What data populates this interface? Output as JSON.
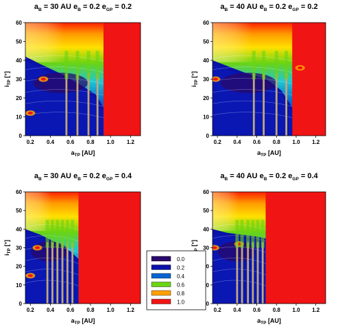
{
  "chart_data": [
    {
      "type": "heatmap",
      "panel": "top-left",
      "title": {
        "a_value": "30 AU",
        "e_value": "0.2",
        "egp_value": "0.2"
      },
      "xlabel": {
        "main": "a",
        "sub": "TP",
        "unit": "[AU]"
      },
      "ylabel": {
        "main": "i",
        "sub": "TP",
        "unit": "[°]"
      },
      "xlim": [
        0.15,
        1.3
      ],
      "ylim": [
        0,
        60
      ],
      "xticks": [
        "0.2",
        "0.4",
        "0.6",
        "0.8",
        "1.0",
        "1.2"
      ],
      "yticks": [
        "0",
        "10",
        "20",
        "30",
        "40",
        "50",
        "60"
      ],
      "stable_edge": [
        [
          0.15,
          42
        ],
        [
          0.3,
          38
        ],
        [
          0.5,
          33
        ],
        [
          0.7,
          27
        ],
        [
          0.85,
          22
        ],
        [
          0.93,
          15
        ]
      ],
      "unstable_limit": 0.93,
      "resonance_lines": [
        0.56,
        0.67,
        0.78,
        0.87
      ],
      "features": [
        {
          "x": 0.33,
          "y": 30
        },
        {
          "x": 0.2,
          "y": 12
        }
      ]
    },
    {
      "type": "heatmap",
      "panel": "top-right",
      "title": {
        "a_value": "40 AU",
        "e_value": "0.2",
        "egp_value": "0.2"
      },
      "xlabel": {
        "main": "a",
        "sub": "TP",
        "unit": "[AU]"
      },
      "ylabel": {
        "main": "i",
        "sub": "TP",
        "unit": "[°]"
      },
      "xlim": [
        0.15,
        1.3
      ],
      "ylim": [
        0,
        60
      ],
      "xticks": [
        "0.2",
        "0.4",
        "0.6",
        "0.8",
        "1.0",
        "1.2"
      ],
      "yticks": [
        "0",
        "10",
        "20",
        "30",
        "40",
        "50",
        "60"
      ],
      "stable_edge": [
        [
          0.15,
          40
        ],
        [
          0.3,
          37
        ],
        [
          0.5,
          33
        ],
        [
          0.7,
          30
        ],
        [
          0.85,
          24
        ],
        [
          0.96,
          15
        ]
      ],
      "unstable_limit": 0.96,
      "resonance_lines": [
        0.57,
        0.67,
        0.8,
        0.9
      ],
      "features": [
        {
          "x": 0.18,
          "y": 30
        },
        {
          "x": 1.04,
          "y": 36
        }
      ]
    },
    {
      "type": "heatmap",
      "panel": "bottom-left",
      "title": {
        "a_value": "30 AU",
        "e_value": "0.2",
        "egp_value": "0.4"
      },
      "xlabel": {
        "main": "a",
        "sub": "TP",
        "unit": "[AU]"
      },
      "ylabel": {
        "main": "i",
        "sub": "TP",
        "unit": "[°]"
      },
      "xlim": [
        0.15,
        1.3
      ],
      "ylim": [
        0,
        60
      ],
      "xticks": [
        "0.2",
        "0.4",
        "0.6",
        "0.8",
        "1.0",
        "1.2"
      ],
      "yticks": [
        "0",
        "10",
        "20",
        "30",
        "40",
        "50",
        "60"
      ],
      "stable_edge": [
        [
          0.15,
          40
        ],
        [
          0.3,
          37
        ],
        [
          0.45,
          33
        ],
        [
          0.6,
          28
        ],
        [
          0.68,
          24
        ]
      ],
      "unstable_limit": 0.68,
      "resonance_lines": [
        0.37,
        0.42,
        0.47,
        0.52,
        0.57,
        0.62
      ],
      "features": [
        {
          "x": 0.27,
          "y": 30
        },
        {
          "x": 0.2,
          "y": 15
        }
      ]
    },
    {
      "type": "heatmap",
      "panel": "bottom-right",
      "title": {
        "a_value": "40 AU",
        "e_value": "0.2",
        "egp_value": "0.4"
      },
      "xlabel": {
        "main": "a",
        "sub": "TP",
        "unit": "[AU]"
      },
      "ylabel": {
        "main": "i",
        "sub": "TP",
        "unit": "[°]"
      },
      "xlim": [
        0.15,
        1.3
      ],
      "ylim": [
        0,
        60
      ],
      "xticks": [
        "0.2",
        "0.4",
        "0.6",
        "0.8",
        "1.0",
        "1.2"
      ],
      "yticks": [
        "0",
        "10",
        "20",
        "30",
        "40",
        "50",
        "60"
      ],
      "stable_edge": [
        [
          0.15,
          40
        ],
        [
          0.3,
          38
        ],
        [
          0.45,
          37
        ],
        [
          0.6,
          36
        ],
        [
          0.69,
          35
        ]
      ],
      "unstable_limit": 0.69,
      "resonance_lines": [
        0.4,
        0.45,
        0.51,
        0.56,
        0.61,
        0.66
      ],
      "features": [
        {
          "x": 0.17,
          "y": 30
        },
        {
          "x": 0.42,
          "y": 32
        }
      ]
    }
  ],
  "legend": {
    "placement": "center",
    "items": [
      {
        "label": "0.0",
        "color": "#2a0a6a"
      },
      {
        "label": "0.2",
        "color": "#0a12a8"
      },
      {
        "label": "0.4",
        "color": "#0a64d0"
      },
      {
        "label": "0.6",
        "color": "#6ad414"
      },
      {
        "label": "0.8",
        "color": "#ffa000"
      },
      {
        "label": "1.0",
        "color": "#f01414"
      }
    ]
  },
  "colors": {
    "unstable": "#f01414",
    "resonance": "#c0a878",
    "contour": "#ffffff"
  }
}
